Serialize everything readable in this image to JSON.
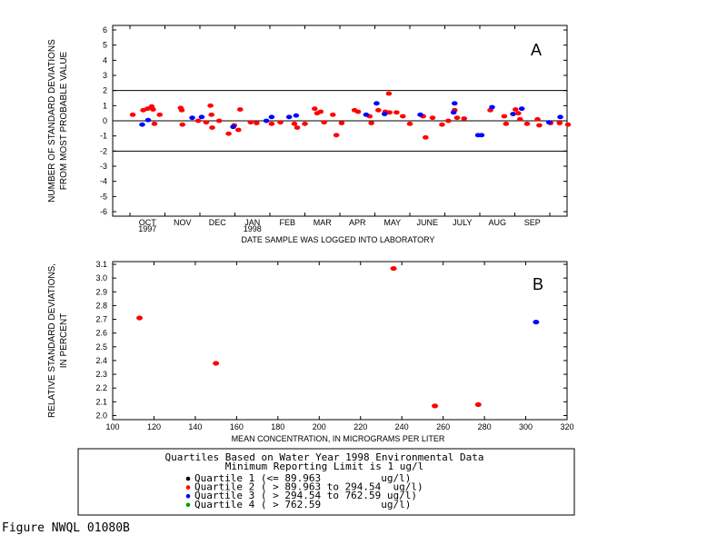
{
  "chart_data": [
    {
      "type": "scatter",
      "panel_label": "A",
      "ylabel_lines": [
        "NUMBER OF STANDARD DEVIATIONS",
        "FROM MOST PROBABLE VALUE"
      ],
      "xlabel": "DATE SAMPLE WAS LOGGED INTO LABORATORY",
      "ylim": [
        -6.3,
        6.3
      ],
      "yticks": [
        -6,
        -5,
        -4,
        -3,
        -2,
        -1,
        0,
        1,
        2,
        3,
        4,
        5,
        6
      ],
      "xlim": [
        0,
        12
      ],
      "months": [
        {
          "label": "OCT",
          "sub": "1997"
        },
        {
          "label": "NOV",
          "sub": ""
        },
        {
          "label": "DEC",
          "sub": ""
        },
        {
          "label": "JAN",
          "sub": "1998"
        },
        {
          "label": "FEB",
          "sub": ""
        },
        {
          "label": "MAR",
          "sub": ""
        },
        {
          "label": "APR",
          "sub": ""
        },
        {
          "label": "MAY",
          "sub": ""
        },
        {
          "label": "JUNE",
          "sub": ""
        },
        {
          "label": "JULY",
          "sub": ""
        },
        {
          "label": "AUG",
          "sub": ""
        },
        {
          "label": "SEP",
          "sub": ""
        }
      ],
      "reference_lines": [
        2,
        0,
        -2
      ],
      "series": [
        {
          "quartile": 2,
          "color": "#ff0000",
          "points": [
            [
              0.08,
              0.4
            ],
            [
              0.38,
              0.7
            ],
            [
              0.5,
              0.8
            ],
            [
              0.62,
              0.95
            ],
            [
              0.66,
              0.75
            ],
            [
              0.7,
              -0.2
            ],
            [
              0.85,
              0.4
            ],
            [
              1.45,
              0.85
            ],
            [
              1.48,
              0.7
            ],
            [
              1.5,
              -0.25
            ],
            [
              1.95,
              0.0
            ],
            [
              2.18,
              -0.1
            ],
            [
              2.3,
              1.0
            ],
            [
              2.33,
              0.4
            ],
            [
              2.35,
              -0.45
            ],
            [
              2.55,
              0.0
            ],
            [
              2.82,
              -0.85
            ],
            [
              2.98,
              -0.3
            ],
            [
              3.1,
              -0.6
            ],
            [
              3.15,
              0.75
            ],
            [
              3.45,
              -0.1
            ],
            [
              3.62,
              -0.15
            ],
            [
              4.05,
              -0.2
            ],
            [
              4.3,
              -0.1
            ],
            [
              4.7,
              -0.2
            ],
            [
              4.78,
              -0.45
            ],
            [
              5.0,
              -0.2
            ],
            [
              5.28,
              0.8
            ],
            [
              5.35,
              0.5
            ],
            [
              5.45,
              0.6
            ],
            [
              5.55,
              -0.1
            ],
            [
              5.8,
              0.4
            ],
            [
              5.9,
              -0.95
            ],
            [
              6.05,
              -0.15
            ],
            [
              6.42,
              0.7
            ],
            [
              6.52,
              0.6
            ],
            [
              6.85,
              0.3
            ],
            [
              6.9,
              -0.15
            ],
            [
              7.1,
              0.7
            ],
            [
              7.3,
              0.6
            ],
            [
              7.4,
              1.8
            ],
            [
              7.42,
              0.55
            ],
            [
              7.62,
              0.55
            ],
            [
              7.8,
              0.3
            ],
            [
              8.0,
              -0.2
            ],
            [
              8.38,
              0.3
            ],
            [
              8.45,
              -1.1
            ],
            [
              8.65,
              0.2
            ],
            [
              8.92,
              -0.25
            ],
            [
              9.1,
              0.0
            ],
            [
              9.28,
              0.7
            ],
            [
              9.35,
              0.2
            ],
            [
              9.55,
              0.15
            ],
            [
              10.3,
              0.7
            ],
            [
              10.7,
              0.3
            ],
            [
              10.75,
              -0.2
            ],
            [
              11.02,
              0.75
            ],
            [
              11.1,
              0.5
            ],
            [
              11.15,
              0.1
            ],
            [
              11.35,
              -0.2
            ],
            [
              11.65,
              0.1
            ],
            [
              11.7,
              -0.3
            ],
            [
              12.02,
              -0.15
            ],
            [
              12.28,
              -0.15
            ],
            [
              12.52,
              -0.25
            ]
          ]
        },
        {
          "quartile": 3,
          "color": "#0000ff",
          "points": [
            [
              0.35,
              -0.25
            ],
            [
              0.52,
              0.05
            ],
            [
              1.78,
              0.2
            ],
            [
              2.05,
              0.25
            ],
            [
              2.95,
              -0.4
            ],
            [
              3.9,
              0.0
            ],
            [
              4.05,
              0.25
            ],
            [
              4.55,
              0.25
            ],
            [
              4.75,
              0.35
            ],
            [
              6.75,
              0.4
            ],
            [
              7.05,
              1.15
            ],
            [
              7.28,
              0.45
            ],
            [
              8.3,
              0.4
            ],
            [
              9.25,
              0.55
            ],
            [
              9.28,
              1.15
            ],
            [
              9.95,
              -0.95
            ],
            [
              10.05,
              -0.95
            ],
            [
              10.35,
              0.9
            ],
            [
              10.95,
              0.45
            ],
            [
              11.2,
              0.8
            ],
            [
              11.98,
              -0.1
            ],
            [
              12.3,
              0.25
            ]
          ]
        }
      ]
    },
    {
      "type": "scatter",
      "panel_label": "B",
      "ylabel_lines": [
        "RELATIVE STANDARD DEVIATIONS,",
        "IN PERCENT"
      ],
      "xlabel": "MEAN CONCENTRATION, IN MICROGRAMS PER LITER",
      "xlim": [
        100,
        320
      ],
      "xticks": [
        100,
        120,
        140,
        160,
        180,
        200,
        220,
        240,
        260,
        280,
        300,
        320
      ],
      "ylim": [
        1.97,
        3.12
      ],
      "yticks": [
        2.0,
        2.1,
        2.2,
        2.3,
        2.4,
        2.5,
        2.6,
        2.7,
        2.8,
        2.9,
        3.0,
        3.1
      ],
      "ytick_labels": [
        "2.0",
        "2.1",
        "2.2",
        "2.3",
        "2.4",
        "2.5",
        "2.6",
        "2.7",
        "2.8",
        "2.9",
        "3.0",
        "3.1"
      ],
      "series": [
        {
          "quartile": 2,
          "color": "#ff0000",
          "points": [
            [
              113,
              2.71
            ],
            [
              150,
              2.38
            ],
            [
              236,
              3.07
            ],
            [
              256,
              2.07
            ],
            [
              277,
              2.08
            ]
          ]
        },
        {
          "quartile": 3,
          "color": "#0000ff",
          "points": [
            [
              305,
              2.68
            ]
          ]
        }
      ]
    }
  ],
  "legend": {
    "title": "Quartiles Based on Water Year 1998 Environmental Data",
    "subtitle": "Minimum Reporting Limit is 1 ug/l",
    "items": [
      {
        "color": "#000000",
        "text": "Quartile 1 (<= 89.963          ug/l)"
      },
      {
        "color": "#ff0000",
        "text": "Quartile 2 ( > 89.963 to 294.54  ug/l)"
      },
      {
        "color": "#0000ff",
        "text": "Quartile 3 ( > 294.54 to 762.59 ug/l)"
      },
      {
        "color": "#00a000",
        "text": "Quartile 4 ( > 762.59          ug/l)"
      }
    ]
  },
  "figure_label": "Figure NWQL 01080B"
}
